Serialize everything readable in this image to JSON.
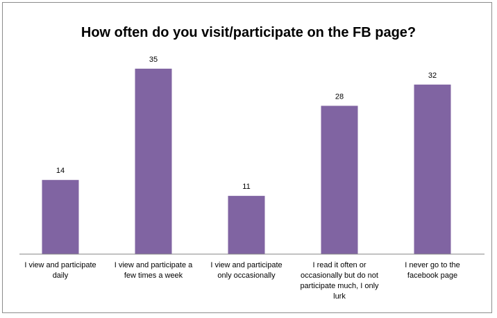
{
  "chart_data": {
    "type": "bar",
    "title": "How often do you visit/participate on the FB page?",
    "categories": [
      "I view and participate daily",
      "I view and participate a few times a week",
      "I view and participate only occasionally",
      "I read it often or occasionally but do not participate much, I only lurk",
      "I never go to the facebook page"
    ],
    "values": [
      14,
      35,
      11,
      28,
      32
    ],
    "xlabel": "",
    "ylabel": "",
    "ylim": [
      0,
      40
    ],
    "grid": false,
    "legend": "none",
    "bar_color": "#8064a2",
    "axis_color": "#868686"
  }
}
